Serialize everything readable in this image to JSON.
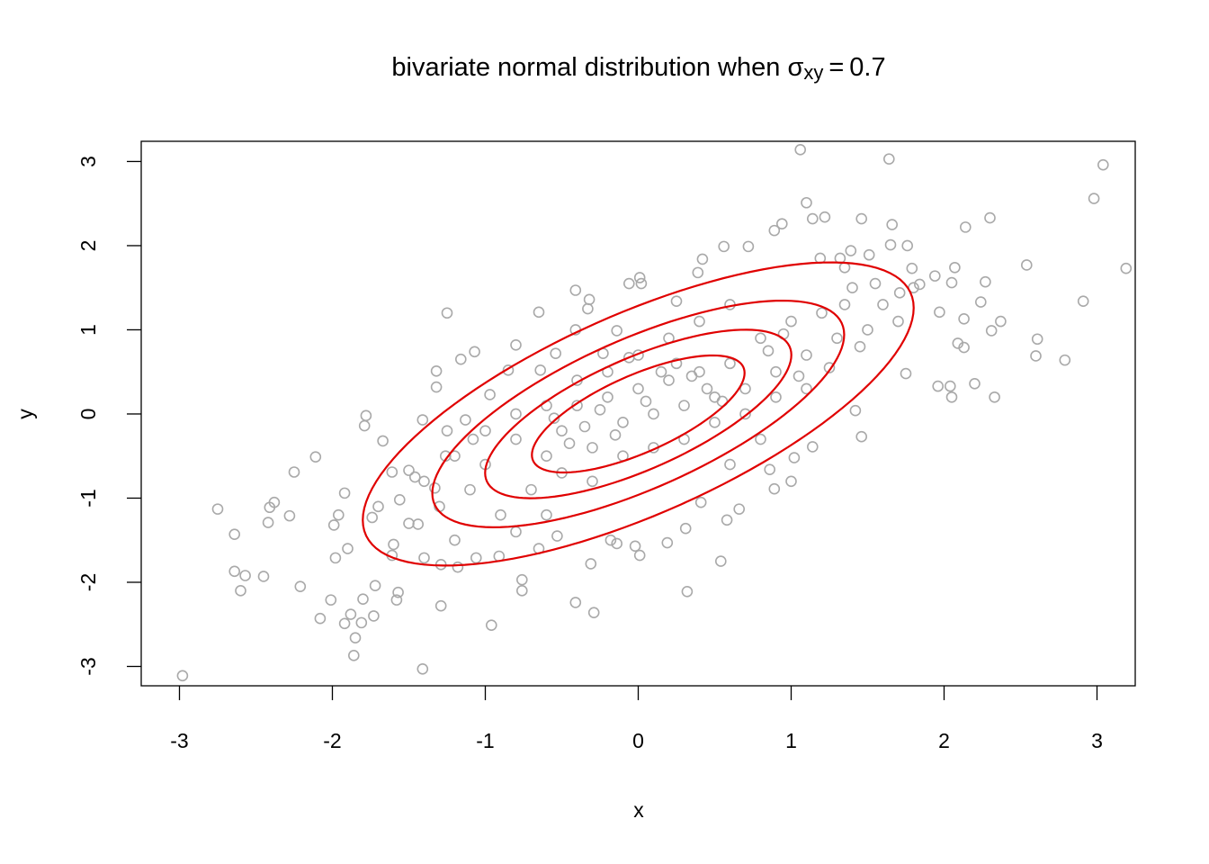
{
  "chart_data": {
    "type": "scatter",
    "title": {
      "text": "bivariate normal distribution when",
      "symbol": "σ",
      "subscript": "xy",
      "relation": "=",
      "value": 0.7
    },
    "x_label": "x",
    "y_label": "y",
    "xlim": [
      -3.25,
      3.25
    ],
    "ylim": [
      -3.23,
      3.24
    ],
    "xticks": [
      -3,
      -2,
      -1,
      0,
      1,
      2,
      3
    ],
    "yticks": [
      -3,
      -2,
      -1,
      0,
      1,
      2,
      3
    ],
    "color": "#a9a9a9",
    "x": [
      -2.98,
      -1.41,
      -2.75,
      -2.64,
      -2.64,
      -2.6,
      -2.57,
      -2.45,
      -2.42,
      -2.41,
      -2.38,
      -2.28,
      -2.25,
      -2.21,
      -2.11,
      -2.08,
      -2.01,
      -1.99,
      -1.98,
      -1.96,
      -1.92,
      -1.92,
      -1.88,
      -1.86,
      -1.85,
      -1.81,
      -1.8,
      -1.73,
      -1.79,
      -1.78,
      -1.74,
      -1.72,
      -1.67,
      -1.61,
      -1.58,
      -1.57,
      -1.5,
      -1.41,
      -1.32,
      -1.32,
      -1.29,
      -1.25,
      -1.18,
      -1.16,
      -1.07,
      -0.96,
      -0.76,
      -0.76,
      -0.65,
      -0.41,
      -0.41,
      -0.29,
      0.01,
      -0.06,
      0.01,
      0.32,
      0.54,
      0.56,
      0.89,
      0.94,
      1.06,
      1.1,
      1.14,
      1.22,
      1.46,
      1.64,
      1.66,
      2.14,
      2.3,
      2.54,
      2.61,
      2.6,
      2.79,
      2.91,
      2.98,
      3.04,
      3.19,
      2.27,
      2.24,
      2.37,
      2.31,
      2.33,
      2.2,
      2.13,
      2.09,
      2.13,
      2.05,
      2.04,
      1.96,
      1.97,
      2.05,
      2.07,
      1.94,
      1.84,
      1.75,
      1.71,
      1.79,
      1.76,
      1.65,
      1.51,
      1.32,
      1.39,
      1.35,
      1.19,
      0.72,
      0.39,
      0.42,
      0.25,
      -0.33,
      -0.32,
      -0.14,
      0.02,
      1.46,
      1.42,
      1.14,
      1.02,
      1.0,
      0.89,
      0.86,
      0.66,
      0.58,
      0.41,
      0.31,
      0.19,
      -0.02,
      -0.14,
      -0.18,
      -0.31,
      -0.53,
      -0.65,
      -0.91,
      -1.06,
      -1.29,
      -1.4,
      -1.44,
      -1.56,
      -1.61,
      -1.46,
      -1.33,
      -1.26,
      -1.13,
      -1.08,
      -0.97,
      -0.85,
      -0.8,
      -0.64,
      -0.54,
      -0.41,
      -0.23,
      -0.06,
      -0.8,
      -0.6,
      -0.5,
      -0.4,
      -0.3,
      -0.2,
      -0.1,
      0,
      0.1,
      0.2,
      0.3,
      0.4,
      0.5,
      0.6,
      0.7,
      0.8,
      0.9,
      1.0,
      1.1,
      1.2,
      1.3,
      1.4,
      1.5,
      1.6,
      -1.0,
      -1.1,
      -1.2,
      -1.3,
      -1.4,
      -0.9,
      -0.7,
      -0.5,
      -0.3,
      -0.1,
      0.1,
      0.3,
      0.5,
      0.7,
      0.9,
      1.1,
      0,
      0.2,
      0.4,
      0.6,
      -0.2,
      -0.4,
      -0.6,
      -0.8,
      -1.0,
      0.35,
      0.45,
      0.55,
      -0.15,
      -0.25,
      0.05,
      0.15,
      0.25,
      -0.35,
      -0.45,
      -0.55,
      0.85,
      0.95,
      1.05,
      1.25,
      1.45,
      1.35,
      1.55,
      -1.5,
      -1.6,
      -1.7,
      -1.2,
      -0.8,
      -0.6,
      0.6,
      0.8,
      1.7,
      1.8,
      -1.9,
      -1.25
    ],
    "values": [
      -3.11,
      -3.03,
      -1.13,
      -1.43,
      -1.87,
      -2.1,
      -1.92,
      -1.93,
      -1.29,
      -1.11,
      -1.05,
      -1.21,
      -0.69,
      -2.05,
      -0.51,
      -2.43,
      -2.21,
      -1.32,
      -1.71,
      -1.2,
      -0.94,
      -2.49,
      -2.38,
      -2.87,
      -2.66,
      -2.48,
      -2.2,
      -2.4,
      -0.14,
      -0.02,
      -1.23,
      -2.04,
      -0.32,
      -1.68,
      -2.21,
      -2.12,
      -0.67,
      -0.07,
      0.32,
      0.51,
      -2.28,
      1.2,
      -1.82,
      0.65,
      0.74,
      -2.51,
      -2.1,
      -1.97,
      1.21,
      1.47,
      -2.24,
      -2.36,
      1.62,
      1.55,
      -1.68,
      -2.11,
      -1.75,
      1.99,
      2.18,
      2.26,
      3.14,
      2.51,
      2.32,
      2.34,
      2.32,
      3.03,
      2.25,
      2.22,
      2.33,
      1.77,
      0.89,
      0.69,
      0.64,
      1.34,
      2.56,
      2.96,
      1.73,
      1.57,
      1.33,
      1.1,
      0.99,
      0.2,
      0.36,
      1.13,
      0.84,
      0.79,
      0.2,
      0.33,
      0.33,
      1.21,
      1.56,
      1.74,
      1.64,
      1.54,
      0.48,
      1.44,
      1.73,
      2.0,
      2.01,
      1.89,
      1.85,
      1.94,
      1.74,
      1.85,
      1.99,
      1.68,
      1.84,
      1.34,
      1.25,
      1.36,
      0.99,
      1.55,
      -0.27,
      0.04,
      -0.39,
      -0.52,
      -0.8,
      -0.89,
      -0.66,
      -1.13,
      -1.26,
      -1.05,
      -1.36,
      -1.53,
      -1.57,
      -1.54,
      -1.5,
      -1.78,
      -1.45,
      -1.6,
      -1.69,
      -1.71,
      -1.79,
      -1.71,
      -1.31,
      -1.02,
      -0.69,
      -0.75,
      -0.88,
      -0.5,
      -0.07,
      -0.3,
      0.23,
      0.52,
      0.82,
      0.52,
      0.72,
      1.0,
      0.72,
      0.67,
      -0.3,
      -0.5,
      -0.2,
      0.1,
      -0.4,
      0.2,
      -0.1,
      0.3,
      0.0,
      0.4,
      0.1,
      0.5,
      0.2,
      0.6,
      0.3,
      0.9,
      0.5,
      1.1,
      0.7,
      1.2,
      0.9,
      1.5,
      1.0,
      1.3,
      -0.6,
      -0.9,
      -0.5,
      -1.1,
      -0.8,
      -1.2,
      -0.9,
      -0.7,
      -0.8,
      -0.5,
      -0.4,
      -0.3,
      -0.1,
      0.0,
      0.2,
      0.3,
      0.7,
      0.9,
      1.1,
      1.3,
      0.5,
      0.4,
      0.1,
      0.0,
      -0.2,
      0.45,
      0.3,
      0.15,
      -0.25,
      0.05,
      0.15,
      0.5,
      0.6,
      -0.15,
      -0.35,
      -0.05,
      0.75,
      0.95,
      0.45,
      0.55,
      0.8,
      1.3,
      1.55,
      -1.3,
      -1.55,
      -1.1,
      -1.5,
      -1.4,
      -1.2,
      -0.6,
      -0.3,
      1.1,
      1.5,
      -1.6,
      -0.2
    ],
    "contours": {
      "color": "#e00000",
      "levels": [
        0.044,
        0.09,
        0.135,
        0.175
      ]
    }
  }
}
